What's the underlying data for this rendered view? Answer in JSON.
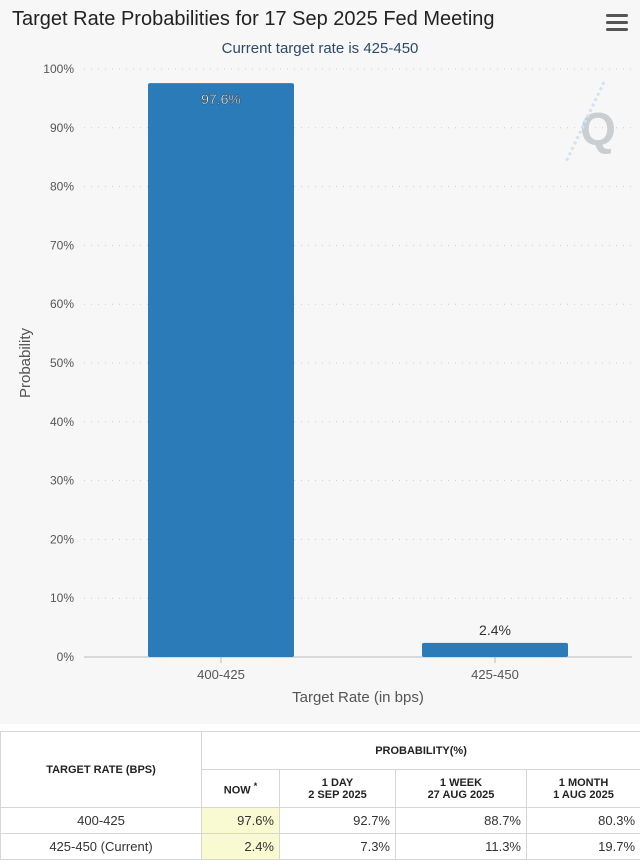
{
  "header": {
    "title": "Target Rate Probabilities for 17 Sep 2025 Fed Meeting",
    "subtitle": "Current target rate is 425-450",
    "menu_icon": "hamburger-menu-icon"
  },
  "watermark": {
    "letter": "Q"
  },
  "colors": {
    "bar": "#2b7bb9",
    "grid": "#cccccc",
    "panel": "#f7f7f7",
    "now_highlight": "#fafad2"
  },
  "chart_data": {
    "type": "bar",
    "title": "Target Rate Probabilities for 17 Sep 2025 Fed Meeting",
    "subtitle": "Current target rate is 425-450",
    "xlabel": "Target Rate (in bps)",
    "ylabel": "Probability",
    "categories": [
      "400-425",
      "425-450"
    ],
    "values": [
      97.6,
      2.4
    ],
    "data_labels": [
      "97.6%",
      "2.4%"
    ],
    "ylim": [
      0,
      100
    ],
    "yticks": [
      "0%",
      "10%",
      "20%",
      "30%",
      "40%",
      "50%",
      "60%",
      "70%",
      "80%",
      "90%",
      "100%"
    ],
    "grid": true,
    "legend": "none"
  },
  "table": {
    "header_target": "TARGET RATE (BPS)",
    "header_probability": "PROBABILITY(%)",
    "columns": [
      {
        "line1": "NOW",
        "line2": "",
        "asterisk": "*"
      },
      {
        "line1": "1 DAY",
        "line2": "2 SEP 2025",
        "asterisk": ""
      },
      {
        "line1": "1 WEEK",
        "line2": "27 AUG 2025",
        "asterisk": ""
      },
      {
        "line1": "1 MONTH",
        "line2": "1 AUG 2025",
        "asterisk": ""
      }
    ],
    "rows": [
      {
        "rate": "400-425",
        "values": [
          "97.6%",
          "92.7%",
          "88.7%",
          "80.3%"
        ]
      },
      {
        "rate": "425-450 (Current)",
        "values": [
          "2.4%",
          "7.3%",
          "11.3%",
          "19.7%"
        ]
      }
    ]
  }
}
